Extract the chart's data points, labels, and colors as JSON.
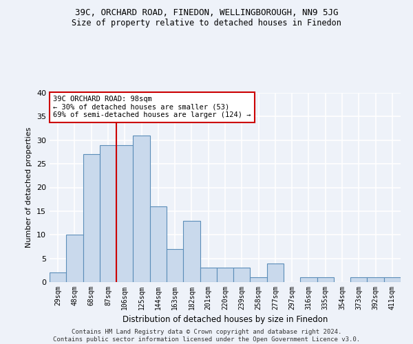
{
  "title1": "39C, ORCHARD ROAD, FINEDON, WELLINGBOROUGH, NN9 5JG",
  "title2": "Size of property relative to detached houses in Finedon",
  "xlabel": "Distribution of detached houses by size in Finedon",
  "ylabel": "Number of detached properties",
  "categories": [
    "29sqm",
    "48sqm",
    "68sqm",
    "87sqm",
    "106sqm",
    "125sqm",
    "144sqm",
    "163sqm",
    "182sqm",
    "201sqm",
    "220sqm",
    "239sqm",
    "258sqm",
    "277sqm",
    "297sqm",
    "316sqm",
    "335sqm",
    "354sqm",
    "373sqm",
    "392sqm",
    "411sqm"
  ],
  "values": [
    2,
    10,
    27,
    29,
    29,
    31,
    16,
    7,
    13,
    3,
    3,
    3,
    1,
    4,
    0,
    1,
    1,
    0,
    1,
    1,
    1
  ],
  "bar_color": "#c9d9ec",
  "bar_edge_color": "#5b8db8",
  "annotation_line1": "39C ORCHARD ROAD: 98sqm",
  "annotation_line2": "← 30% of detached houses are smaller (53)",
  "annotation_line3": "69% of semi-detached houses are larger (124) →",
  "annotation_box_color": "#ffffff",
  "annotation_box_edge": "#cc0000",
  "vline_x": 3.5,
  "vline_color": "#cc0000",
  "ylim": [
    0,
    40
  ],
  "yticks": [
    0,
    5,
    10,
    15,
    20,
    25,
    30,
    35,
    40
  ],
  "footer1": "Contains HM Land Registry data © Crown copyright and database right 2024.",
  "footer2": "Contains public sector information licensed under the Open Government Licence v3.0.",
  "bg_color": "#eef2f9",
  "plot_bg_color": "#eef2f9",
  "grid_color": "#ffffff"
}
